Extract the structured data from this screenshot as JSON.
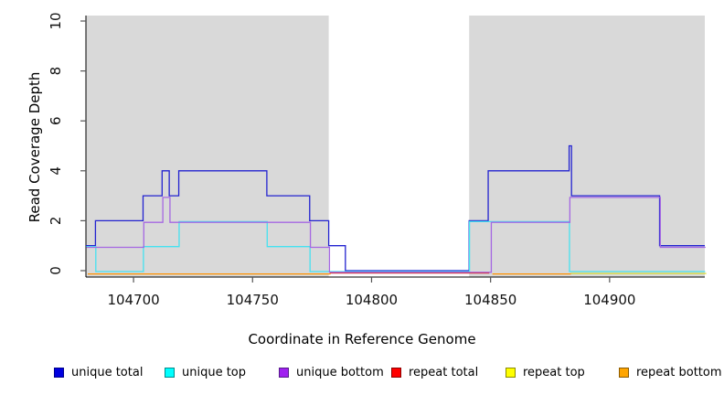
{
  "chart_data": {
    "type": "line",
    "subtype": "step-coverage",
    "title": "",
    "xlabel": "Coordinate in Reference Genome",
    "ylabel": "Read Coverage Depth",
    "xlim": [
      104680,
      104940
    ],
    "ylim": [
      0,
      10
    ],
    "x_ticks": [
      104700,
      104750,
      104800,
      104850,
      104900
    ],
    "y_ticks": [
      0,
      2,
      4,
      6,
      8,
      10
    ],
    "grid": false,
    "legend_position": "bottom",
    "panel_background": "#ffffff",
    "gray_bands": [
      {
        "from": 104680,
        "to": 104782,
        "color": "#d9d9d9"
      },
      {
        "from": 104841,
        "to": 104940,
        "color": "#d9d9d9"
      }
    ],
    "white_band": {
      "from": 104782,
      "to": 104841
    },
    "series": [
      {
        "name": "unique total",
        "line_color": "#2323d0",
        "legend_fill": "#0000e0",
        "legend_border": "#00008b",
        "segments": [
          [
            [
              104680,
              1
            ],
            [
              104684,
              2
            ],
            [
              104704,
              3
            ],
            [
              104712,
              4
            ],
            [
              104715,
              3
            ],
            [
              104719,
              4
            ],
            [
              104756,
              3
            ],
            [
              104774,
              2
            ],
            [
              104782,
              1
            ],
            [
              104789,
              0
            ],
            [
              104841,
              2
            ],
            [
              104849,
              4
            ],
            [
              104883,
              5
            ],
            [
              104884,
              3
            ],
            [
              104921,
              1
            ],
            [
              104940,
              1
            ]
          ]
        ]
      },
      {
        "name": "unique top",
        "line_color": "#45e2f0",
        "legend_fill": "#00ffff",
        "legend_border": "#008b8b",
        "segments": [
          [
            [
              104680,
              1
            ],
            [
              104684,
              0
            ],
            [
              104704,
              1
            ],
            [
              104719,
              2
            ],
            [
              104756,
              1
            ],
            [
              104774,
              0
            ],
            [
              104841,
              2
            ],
            [
              104883,
              0
            ],
            [
              104940,
              0
            ]
          ]
        ]
      },
      {
        "name": "unique bottom",
        "line_color": "#a567e2",
        "legend_fill": "#a020f0",
        "legend_border": "#551a8b",
        "segments": [
          [
            [
              104680,
              1
            ],
            [
              104704,
              2
            ],
            [
              104712,
              3
            ],
            [
              104715,
              2
            ],
            [
              104774,
              1
            ],
            [
              104782,
              0
            ],
            [
              104850,
              2
            ],
            [
              104883,
              3
            ],
            [
              104921,
              1
            ],
            [
              104940,
              1
            ]
          ]
        ]
      },
      {
        "name": "repeat total",
        "line_color": "#cc3a5c",
        "legend_fill": "#ff0000",
        "legend_border": "#8b0000",
        "segments": [
          [
            [
              104782,
              0
            ],
            [
              104849,
              0
            ]
          ]
        ]
      },
      {
        "name": "repeat top",
        "line_color": "#d8d832",
        "legend_fill": "#ffff00",
        "legend_border": "#8b8b00",
        "segments": [
          [
            [
              104883,
              0
            ],
            [
              104940,
              0
            ]
          ]
        ]
      },
      {
        "name": "repeat bottom",
        "line_color": "#ff9100",
        "legend_fill": "#ffa500",
        "legend_border": "#8b5a00",
        "segments": [
          [
            [
              104680,
              0
            ],
            [
              104782,
              0
            ]
          ],
          [
            [
              104850,
              0
            ],
            [
              104883,
              0
            ]
          ]
        ]
      }
    ]
  }
}
